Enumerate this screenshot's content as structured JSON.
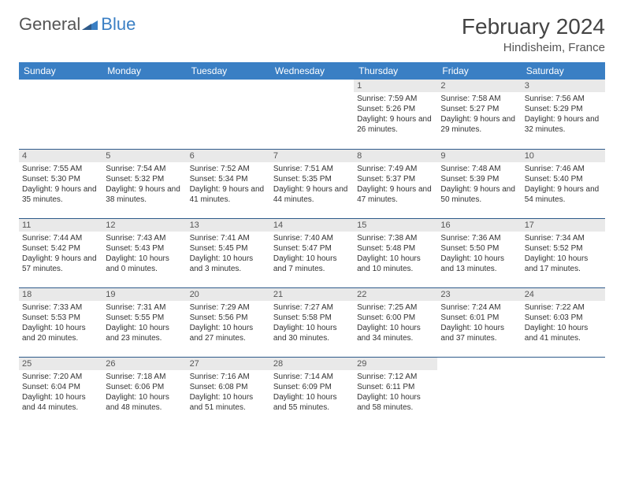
{
  "brand": {
    "general": "General",
    "blue": "Blue"
  },
  "title": {
    "month": "February 2024",
    "location": "Hindisheim, France"
  },
  "dayHeaders": [
    "Sunday",
    "Monday",
    "Tuesday",
    "Wednesday",
    "Thursday",
    "Friday",
    "Saturday"
  ],
  "colors": {
    "header_bg": "#3a7fc4",
    "header_text": "#ffffff",
    "daynum_bg": "#e9e9e9",
    "row_border": "#2e5a8a",
    "text": "#333333"
  },
  "weeks": [
    [
      null,
      null,
      null,
      null,
      {
        "n": "1",
        "sr": "7:59 AM",
        "ss": "5:26 PM",
        "dl": "9 hours and 26 minutes."
      },
      {
        "n": "2",
        "sr": "7:58 AM",
        "ss": "5:27 PM",
        "dl": "9 hours and 29 minutes."
      },
      {
        "n": "3",
        "sr": "7:56 AM",
        "ss": "5:29 PM",
        "dl": "9 hours and 32 minutes."
      }
    ],
    [
      {
        "n": "4",
        "sr": "7:55 AM",
        "ss": "5:30 PM",
        "dl": "9 hours and 35 minutes."
      },
      {
        "n": "5",
        "sr": "7:54 AM",
        "ss": "5:32 PM",
        "dl": "9 hours and 38 minutes."
      },
      {
        "n": "6",
        "sr": "7:52 AM",
        "ss": "5:34 PM",
        "dl": "9 hours and 41 minutes."
      },
      {
        "n": "7",
        "sr": "7:51 AM",
        "ss": "5:35 PM",
        "dl": "9 hours and 44 minutes."
      },
      {
        "n": "8",
        "sr": "7:49 AM",
        "ss": "5:37 PM",
        "dl": "9 hours and 47 minutes."
      },
      {
        "n": "9",
        "sr": "7:48 AM",
        "ss": "5:39 PM",
        "dl": "9 hours and 50 minutes."
      },
      {
        "n": "10",
        "sr": "7:46 AM",
        "ss": "5:40 PM",
        "dl": "9 hours and 54 minutes."
      }
    ],
    [
      {
        "n": "11",
        "sr": "7:44 AM",
        "ss": "5:42 PM",
        "dl": "9 hours and 57 minutes."
      },
      {
        "n": "12",
        "sr": "7:43 AM",
        "ss": "5:43 PM",
        "dl": "10 hours and 0 minutes."
      },
      {
        "n": "13",
        "sr": "7:41 AM",
        "ss": "5:45 PM",
        "dl": "10 hours and 3 minutes."
      },
      {
        "n": "14",
        "sr": "7:40 AM",
        "ss": "5:47 PM",
        "dl": "10 hours and 7 minutes."
      },
      {
        "n": "15",
        "sr": "7:38 AM",
        "ss": "5:48 PM",
        "dl": "10 hours and 10 minutes."
      },
      {
        "n": "16",
        "sr": "7:36 AM",
        "ss": "5:50 PM",
        "dl": "10 hours and 13 minutes."
      },
      {
        "n": "17",
        "sr": "7:34 AM",
        "ss": "5:52 PM",
        "dl": "10 hours and 17 minutes."
      }
    ],
    [
      {
        "n": "18",
        "sr": "7:33 AM",
        "ss": "5:53 PM",
        "dl": "10 hours and 20 minutes."
      },
      {
        "n": "19",
        "sr": "7:31 AM",
        "ss": "5:55 PM",
        "dl": "10 hours and 23 minutes."
      },
      {
        "n": "20",
        "sr": "7:29 AM",
        "ss": "5:56 PM",
        "dl": "10 hours and 27 minutes."
      },
      {
        "n": "21",
        "sr": "7:27 AM",
        "ss": "5:58 PM",
        "dl": "10 hours and 30 minutes."
      },
      {
        "n": "22",
        "sr": "7:25 AM",
        "ss": "6:00 PM",
        "dl": "10 hours and 34 minutes."
      },
      {
        "n": "23",
        "sr": "7:24 AM",
        "ss": "6:01 PM",
        "dl": "10 hours and 37 minutes."
      },
      {
        "n": "24",
        "sr": "7:22 AM",
        "ss": "6:03 PM",
        "dl": "10 hours and 41 minutes."
      }
    ],
    [
      {
        "n": "25",
        "sr": "7:20 AM",
        "ss": "6:04 PM",
        "dl": "10 hours and 44 minutes."
      },
      {
        "n": "26",
        "sr": "7:18 AM",
        "ss": "6:06 PM",
        "dl": "10 hours and 48 minutes."
      },
      {
        "n": "27",
        "sr": "7:16 AM",
        "ss": "6:08 PM",
        "dl": "10 hours and 51 minutes."
      },
      {
        "n": "28",
        "sr": "7:14 AM",
        "ss": "6:09 PM",
        "dl": "10 hours and 55 minutes."
      },
      {
        "n": "29",
        "sr": "7:12 AM",
        "ss": "6:11 PM",
        "dl": "10 hours and 58 minutes."
      },
      null,
      null
    ]
  ],
  "labels": {
    "sunrise": "Sunrise: ",
    "sunset": "Sunset: ",
    "daylight": "Daylight: "
  }
}
